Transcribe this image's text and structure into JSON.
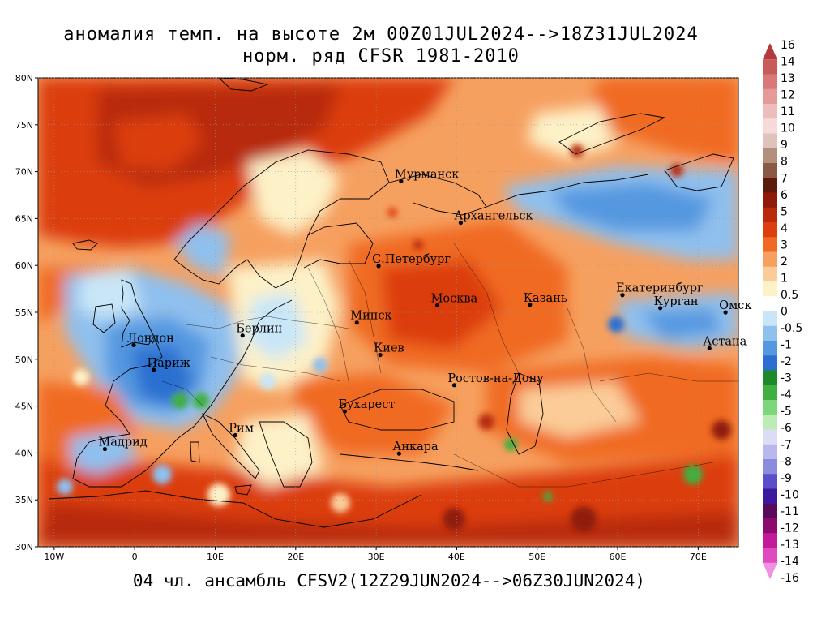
{
  "title": {
    "line1": "аномалия темп. на высоте 2м 00Z01JUL2024-->18Z31JUL2024",
    "line2": "норм. ряд CFSR 1981-2010"
  },
  "footer": "04 чл. ансамбль CFSV2(12Z29JUN2024-->06Z30JUN2024)",
  "map": {
    "lon_range": [
      -12,
      75
    ],
    "lat_range": [
      30,
      80
    ],
    "lon_ticks": [
      "10W",
      "0",
      "10E",
      "20E",
      "30E",
      "40E",
      "50E",
      "60E",
      "70E"
    ],
    "lat_ticks": [
      "80N",
      "75N",
      "70N",
      "65N",
      "60N",
      "55N",
      "50N",
      "45N",
      "40N",
      "35N",
      "30N"
    ],
    "cities": [
      {
        "name": "Мурманск",
        "lon": 33.1,
        "lat": 68.97
      },
      {
        "name": "Архангельск",
        "lon": 40.5,
        "lat": 64.55
      },
      {
        "name": "С.Петербург",
        "lon": 30.3,
        "lat": 59.94
      },
      {
        "name": "Москва",
        "lon": 37.6,
        "lat": 55.75
      },
      {
        "name": "Казань",
        "lon": 49.1,
        "lat": 55.8
      },
      {
        "name": "Екатеринбург",
        "lon": 60.6,
        "lat": 56.84
      },
      {
        "name": "Курган",
        "lon": 65.3,
        "lat": 55.45
      },
      {
        "name": "Омск",
        "lon": 73.4,
        "lat": 54.99
      },
      {
        "name": "Астана",
        "lon": 71.4,
        "lat": 51.16
      },
      {
        "name": "Минск",
        "lon": 27.6,
        "lat": 53.9
      },
      {
        "name": "Киев",
        "lon": 30.5,
        "lat": 50.45
      },
      {
        "name": "Берлин",
        "lon": 13.4,
        "lat": 52.52
      },
      {
        "name": "Лондон",
        "lon": -0.12,
        "lat": 51.5
      },
      {
        "name": "Париж",
        "lon": 2.35,
        "lat": 48.86
      },
      {
        "name": "Ростов-на-Дону",
        "lon": 39.7,
        "lat": 47.23
      },
      {
        "name": "Бухарест",
        "lon": 26.1,
        "lat": 44.43
      },
      {
        "name": "Рим",
        "lon": 12.5,
        "lat": 41.9
      },
      {
        "name": "Мадрид",
        "lon": -3.7,
        "lat": 40.42
      },
      {
        "name": "Анкара",
        "lon": 32.85,
        "lat": 39.93
      }
    ]
  },
  "colorbar": {
    "labels": [
      "16",
      "14",
      "13",
      "12",
      "11",
      "10",
      "9",
      "8",
      "7",
      "6",
      "5",
      "4",
      "3",
      "2",
      "1",
      "0.5",
      "0",
      "-0.5",
      "-1",
      "-2",
      "-3",
      "-4",
      "-5",
      "-6",
      "-7",
      "-8",
      "-9",
      "-10",
      "-11",
      "-12",
      "-13",
      "-14",
      "-16"
    ],
    "colors": [
      "#b33a3a",
      "#c95a5a",
      "#d87878",
      "#e59a9a",
      "#efbcbc",
      "#f6dada",
      "#dec3ba",
      "#b38f7e",
      "#8a5a47",
      "#5c1a0a",
      "#8f1a0a",
      "#b82a0a",
      "#dc3e10",
      "#f06a24",
      "#f6a060",
      "#fbcc98",
      "#fdf1c8",
      "#ffffff",
      "#c8e6f8",
      "#8fc0ee",
      "#5598e0",
      "#2c6fd0",
      "#1a8a2a",
      "#3fb040",
      "#7ed67a",
      "#bdebb4",
      "#dcdcf6",
      "#b8b8ee",
      "#8c8cde",
      "#5b4ec8",
      "#3a1a9e",
      "#5a0a5a",
      "#8c0a6e",
      "#c21a9a",
      "#e04ac0",
      "#f090e0"
    ],
    "colors_note": ""
  },
  "palette": {
    "warm_dark": "#b82a0a",
    "warm": "#dc3e10",
    "warm_mid": "#f06a24",
    "warm_light": "#f6a060",
    "warm_pale": "#fbcc98",
    "neutral": "#fdf1c8",
    "cool_pale": "#c8e6f8",
    "cool": "#8fc0ee",
    "cool_mid": "#5598e0",
    "cool_dark": "#2c6fd0",
    "green": "#3fb040"
  }
}
